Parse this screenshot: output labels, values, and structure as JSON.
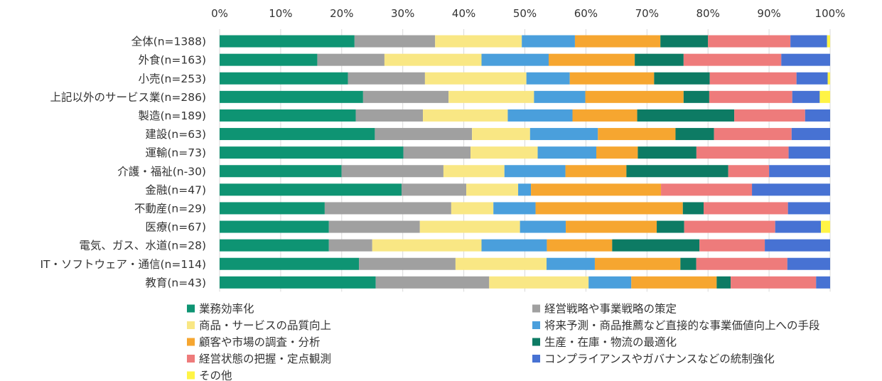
{
  "chart_data": {
    "type": "bar",
    "orientation": "horizontal",
    "stacked": true,
    "percent_stacked": true,
    "grid": true,
    "legend_position": "bottom",
    "xlim": [
      0,
      100
    ],
    "x_ticks": [
      "0%",
      "10%",
      "20%",
      "30%",
      "40%",
      "50%",
      "60%",
      "70%",
      "80%",
      "90%",
      "100%"
    ],
    "categories": [
      "全体(n=1388)",
      "外食(n=163)",
      "小売(n=253)",
      "上記以外のサービス業(n=286)",
      "製造(n=189)",
      "建設(n=63)",
      "運輸(n=73)",
      "介護・福祉(n-30)",
      "金融(n=47)",
      "不動産(n=29)",
      "医療(n=67)",
      "電気、ガス、水道(n=28)",
      "IT・ソフトウェア・通信(n=114)",
      "教育(n=43)"
    ],
    "series": [
      {
        "name": "業務効率化",
        "color": "#0e9473",
        "values": [
          22.1,
          16.0,
          21.0,
          23.5,
          22.3,
          25.4,
          30.1,
          20.0,
          29.8,
          17.2,
          17.9,
          17.9,
          22.8,
          25.6
        ]
      },
      {
        "name": "経営戦略や事業戦略の策定",
        "color": "#a0a0a0",
        "values": [
          13.2,
          11.0,
          12.6,
          14.0,
          11.0,
          15.9,
          11.0,
          16.7,
          10.6,
          20.7,
          14.9,
          7.1,
          15.8,
          18.6
        ]
      },
      {
        "name": "商品・サービスの品質向上",
        "color": "#f9e784",
        "values": [
          14.2,
          15.9,
          16.6,
          14.0,
          13.9,
          9.5,
          11.0,
          10.0,
          8.5,
          6.9,
          16.4,
          17.9,
          14.9,
          16.3
        ]
      },
      {
        "name": "将来予測・商品推薦など直接的な事業価値向上への手段",
        "color": "#4a9fdc",
        "values": [
          8.7,
          11.0,
          7.1,
          8.4,
          10.6,
          11.1,
          9.6,
          10.0,
          2.1,
          6.9,
          7.5,
          10.7,
          7.9,
          7.0
        ]
      },
      {
        "name": "顧客や市場の調査・分析",
        "color": "#f6a630",
        "values": [
          14.0,
          14.1,
          13.8,
          16.1,
          10.6,
          12.7,
          6.8,
          10.0,
          21.3,
          24.1,
          14.9,
          10.7,
          14.0,
          14.0
        ]
      },
      {
        "name": "生産・在庫・物流の最適化",
        "color": "#0d7b64",
        "values": [
          7.8,
          8.0,
          9.1,
          4.2,
          15.9,
          6.3,
          9.6,
          16.7,
          0.0,
          3.4,
          4.5,
          14.3,
          2.6,
          2.3
        ]
      },
      {
        "name": "経営状態の把握・定点観測",
        "color": "#ee7b7b",
        "values": [
          13.5,
          16.0,
          14.2,
          13.6,
          11.6,
          12.7,
          15.1,
          6.7,
          14.9,
          13.8,
          14.9,
          10.7,
          14.9,
          14.0
        ]
      },
      {
        "name": "コンプライアンスやガバナンスなどの統制強化",
        "color": "#4772d3",
        "values": [
          6.0,
          8.0,
          5.1,
          4.5,
          4.1,
          6.3,
          6.8,
          10.0,
          12.8,
          6.9,
          7.5,
          10.7,
          7.0,
          2.3
        ]
      },
      {
        "name": "その他",
        "color": "#fff445",
        "values": [
          0.5,
          0.0,
          0.4,
          1.7,
          0.0,
          0.0,
          0.0,
          0.0,
          0.0,
          0.0,
          1.5,
          0.0,
          0.0,
          0.0
        ]
      }
    ]
  }
}
